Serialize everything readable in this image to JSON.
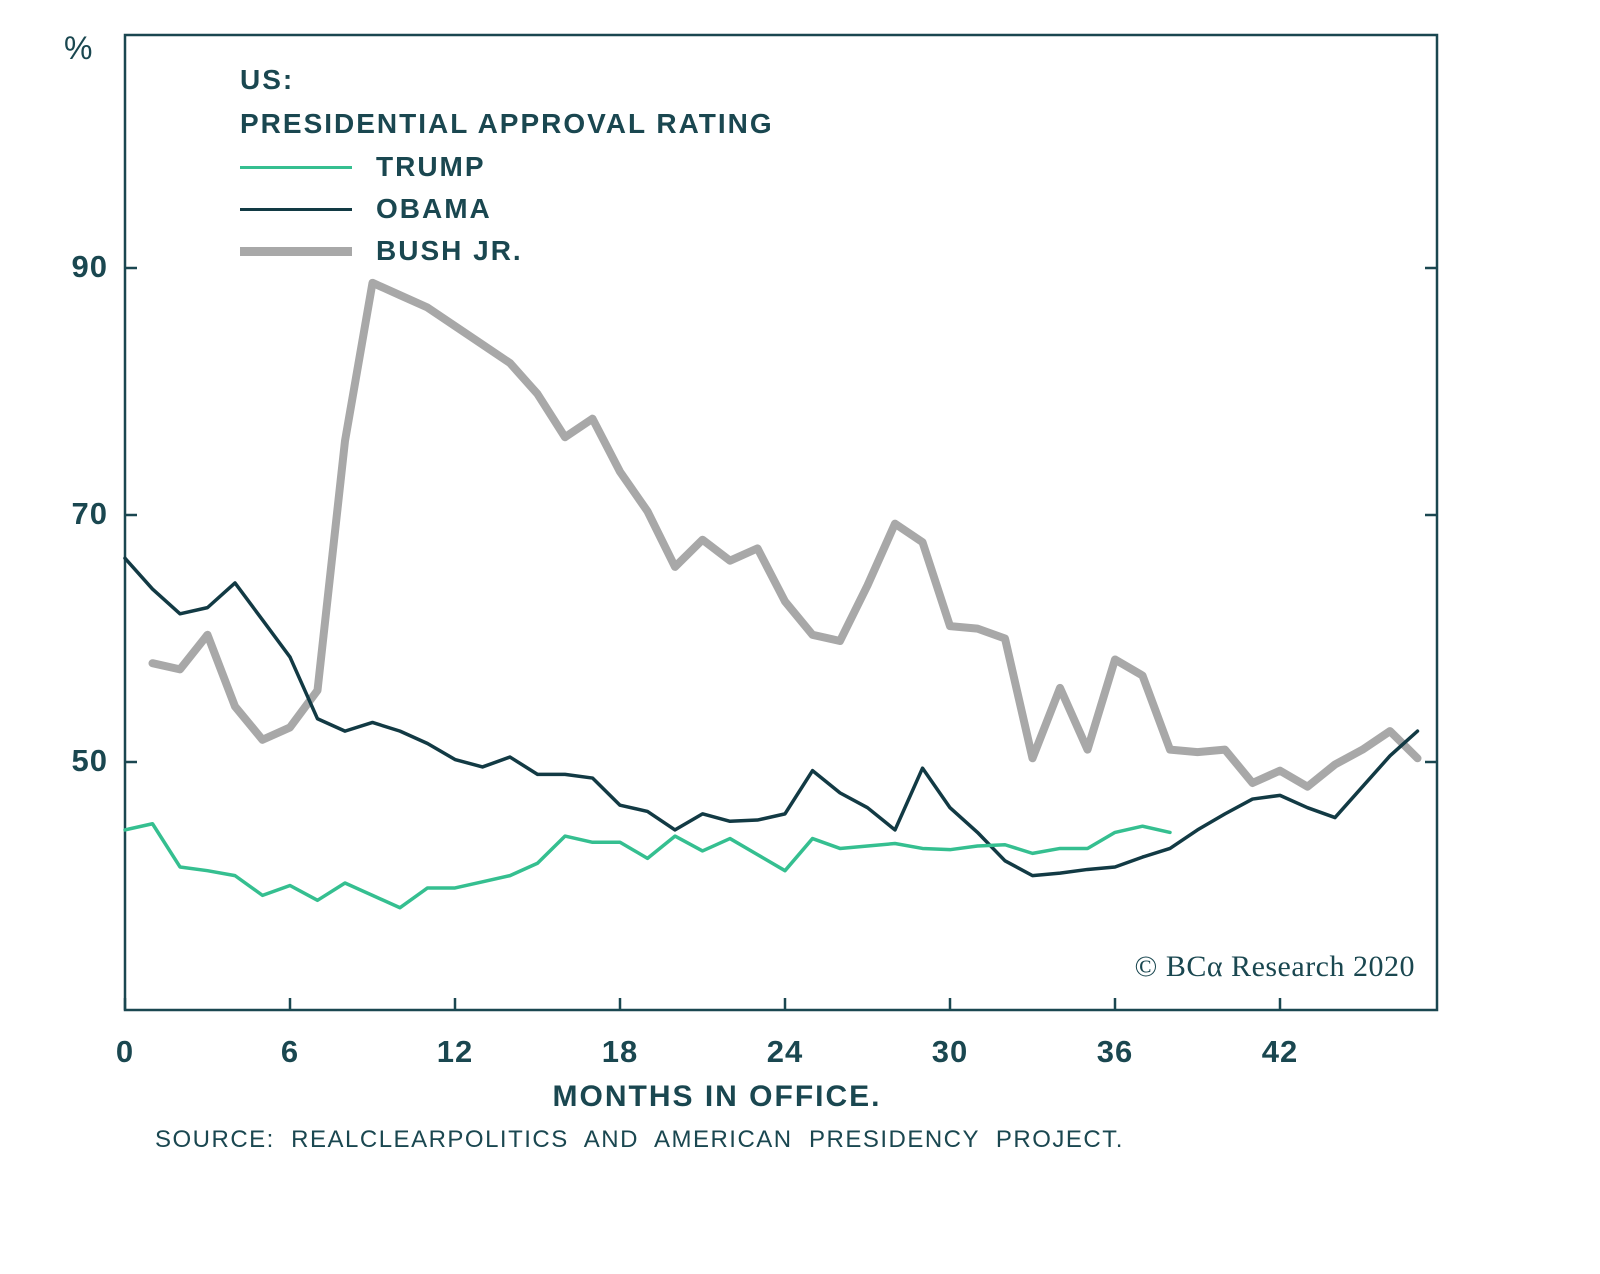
{
  "axis": {
    "percent_symbol": "%"
  },
  "header": {
    "title_line1": "US:",
    "title_line2": "PRESIDENTIAL APPROVAL RATING"
  },
  "footer": {
    "source": "SOURCE:  REALCLEARPOLITICS  AND  AMERICAN  PRESIDENCY  PROJECT.",
    "copyright": "© BCα Research 2020"
  },
  "colors": {
    "ink": "#1a4750",
    "trump_line": "#35bf90",
    "obama_line": "#123a44",
    "bush_line": "#a8a8a8"
  },
  "chart_data": {
    "type": "line",
    "title": "US: PRESIDENTIAL APPROVAL RATING",
    "xlabel": "MONTHS IN OFFICE.",
    "ylabel": "%",
    "x_ticks": [
      0,
      6,
      12,
      18,
      24,
      30,
      36,
      42
    ],
    "y_ticks": [
      50,
      70,
      90
    ],
    "xlim": [
      0,
      47.7
    ],
    "ylim": [
      30,
      109
    ],
    "grid": false,
    "legend_position": "top-left",
    "series": [
      {
        "name": "TRUMP",
        "color": "#35bf90",
        "stroke_width": 3.5,
        "swatch_thickness": 3,
        "start_month": 0,
        "values": [
          44.5,
          45.0,
          41.5,
          41.2,
          40.8,
          39.2,
          40.0,
          38.8,
          40.2,
          39.2,
          38.2,
          39.8,
          39.8,
          40.3,
          40.8,
          41.8,
          44.0,
          43.5,
          43.5,
          42.2,
          44.0,
          42.8,
          43.8,
          42.5,
          41.2,
          43.8,
          43.0,
          43.2,
          43.4,
          43.0,
          42.9,
          43.2,
          43.3,
          42.6,
          43.0,
          43.0,
          44.3,
          44.8,
          44.3
        ]
      },
      {
        "name": "OBAMA",
        "color": "#123a44",
        "stroke_width": 3.5,
        "swatch_thickness": 3,
        "start_month": 0,
        "values": [
          66.5,
          64.0,
          62.0,
          62.5,
          64.5,
          61.5,
          58.5,
          53.5,
          52.5,
          53.2,
          52.5,
          51.5,
          50.2,
          49.6,
          50.4,
          49.0,
          49.0,
          48.7,
          46.5,
          46.0,
          44.5,
          45.8,
          45.2,
          45.3,
          45.8,
          49.3,
          47.5,
          46.3,
          44.5,
          49.5,
          46.3,
          44.3,
          42.0,
          40.8,
          41.0,
          41.3,
          41.5,
          42.3,
          43.0,
          44.5,
          45.8,
          47.0,
          47.3,
          46.3,
          45.5,
          48.0,
          50.5,
          52.5
        ]
      },
      {
        "name": "BUSH JR.",
        "color": "#a8a8a8",
        "stroke_width": 8,
        "swatch_thickness": 9,
        "start_month": 1,
        "values": [
          58.0,
          57.5,
          60.3,
          54.5,
          51.8,
          52.8,
          55.8,
          76.0,
          88.8,
          87.8,
          86.8,
          85.3,
          83.8,
          82.3,
          79.8,
          76.3,
          77.8,
          73.5,
          70.3,
          65.8,
          68.0,
          66.3,
          67.3,
          63.0,
          60.3,
          59.8,
          64.3,
          69.3,
          67.8,
          61.0,
          60.8,
          60.0,
          50.3,
          56.0,
          51.0,
          58.3,
          57.0,
          51.0,
          50.8,
          51.0,
          48.3,
          49.3,
          48.0,
          49.8,
          51.0,
          52.5,
          50.3
        ]
      }
    ]
  }
}
